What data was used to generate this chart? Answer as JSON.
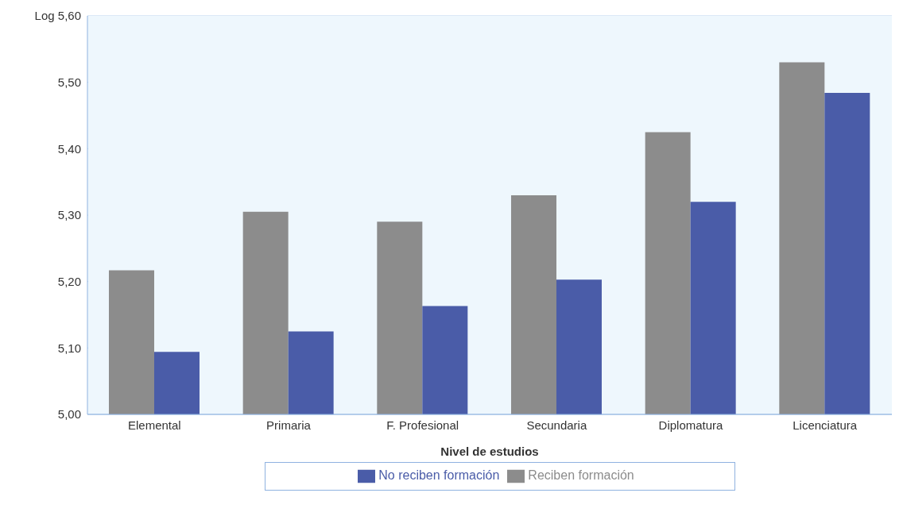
{
  "chart_data": {
    "type": "bar",
    "xlabel": "Nivel de estudios",
    "categories": [
      "Elemental",
      "Primaria",
      "F. Profesional",
      "Secundaria",
      "Diplomatura",
      "Licenciatura"
    ],
    "series": [
      {
        "name": "Reciben formación",
        "color": "#8c8c8c",
        "values": [
          5.217,
          5.305,
          5.29,
          5.33,
          5.425,
          5.53
        ]
      },
      {
        "name": "No reciben formación",
        "color": "#4a5ca8",
        "values": [
          5.094,
          5.125,
          5.163,
          5.203,
          5.32,
          5.484
        ]
      }
    ],
    "ylim": [
      5.0,
      5.6
    ],
    "yticks": [
      {
        "value": 5.0,
        "label": "5,00"
      },
      {
        "value": 5.1,
        "label": "5,10"
      },
      {
        "value": 5.2,
        "label": "5,20"
      },
      {
        "value": 5.3,
        "label": "5,30"
      },
      {
        "value": 5.4,
        "label": "5,40"
      },
      {
        "value": 5.5,
        "label": "5,50"
      },
      {
        "value": 5.6,
        "label": "Log 5,60"
      }
    ],
    "grid": "y",
    "legend": "bottom"
  }
}
